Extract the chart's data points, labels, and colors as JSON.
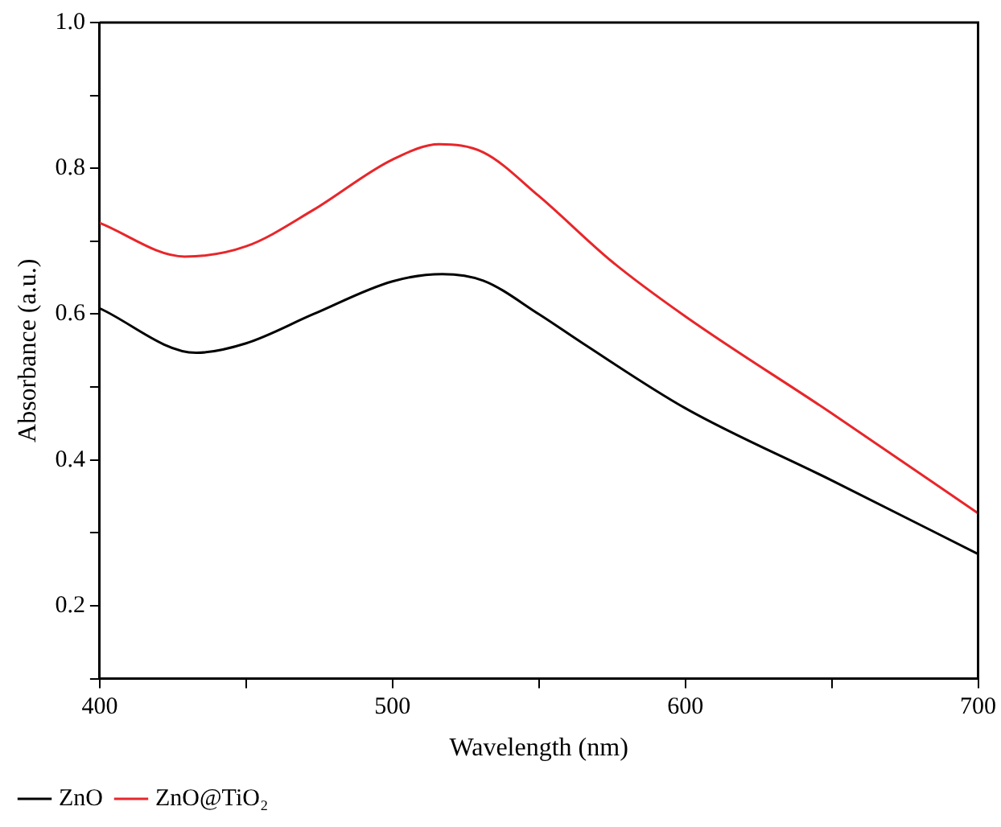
{
  "chart_data": {
    "type": "line",
    "xlabel": "Wavelength (nm)",
    "ylabel": "Absorbance (a.u.)",
    "xlim": [
      400,
      700
    ],
    "xticks": [
      400,
      {
        "value": 450,
        "label": null
      },
      500,
      {
        "value": 550,
        "label": null
      },
      600,
      {
        "value": 650,
        "label": null
      },
      700
    ],
    "ylim": [
      0.1,
      1.0
    ],
    "yticks": [
      {
        "value": 0.1,
        "label": null
      },
      0.2,
      {
        "value": 0.3,
        "label": null
      },
      0.4,
      {
        "value": 0.5,
        "label": null
      },
      0.6,
      {
        "value": 0.7,
        "label": null
      },
      0.8,
      {
        "value": 0.9,
        "label": null
      },
      {
        "value": 1.0,
        "label": "1.0"
      }
    ],
    "grid": false,
    "legend": "bottom left",
    "marker": "none",
    "line_style": "solid",
    "series": [
      {
        "name": "ZnO",
        "color": "#000000",
        "x": [
          400,
          433,
          450,
          473,
          500,
          517,
          531,
          550,
          565,
          600,
          650,
          700
        ],
        "values": [
          0.608,
          0.547,
          0.56,
          0.6,
          0.645,
          0.655,
          0.646,
          0.6,
          0.56,
          0.471,
          0.372,
          0.271
        ]
      },
      {
        "name": "ZnO@TiO₂",
        "color": "#e8262a",
        "x": [
          400,
          429,
          450,
          473,
          500,
          516,
          531,
          550,
          575,
          600,
          650,
          700
        ],
        "values": [
          0.725,
          0.679,
          0.693,
          0.743,
          0.812,
          0.833,
          0.822,
          0.762,
          0.672,
          0.597,
          0.464,
          0.327
        ]
      }
    ]
  }
}
